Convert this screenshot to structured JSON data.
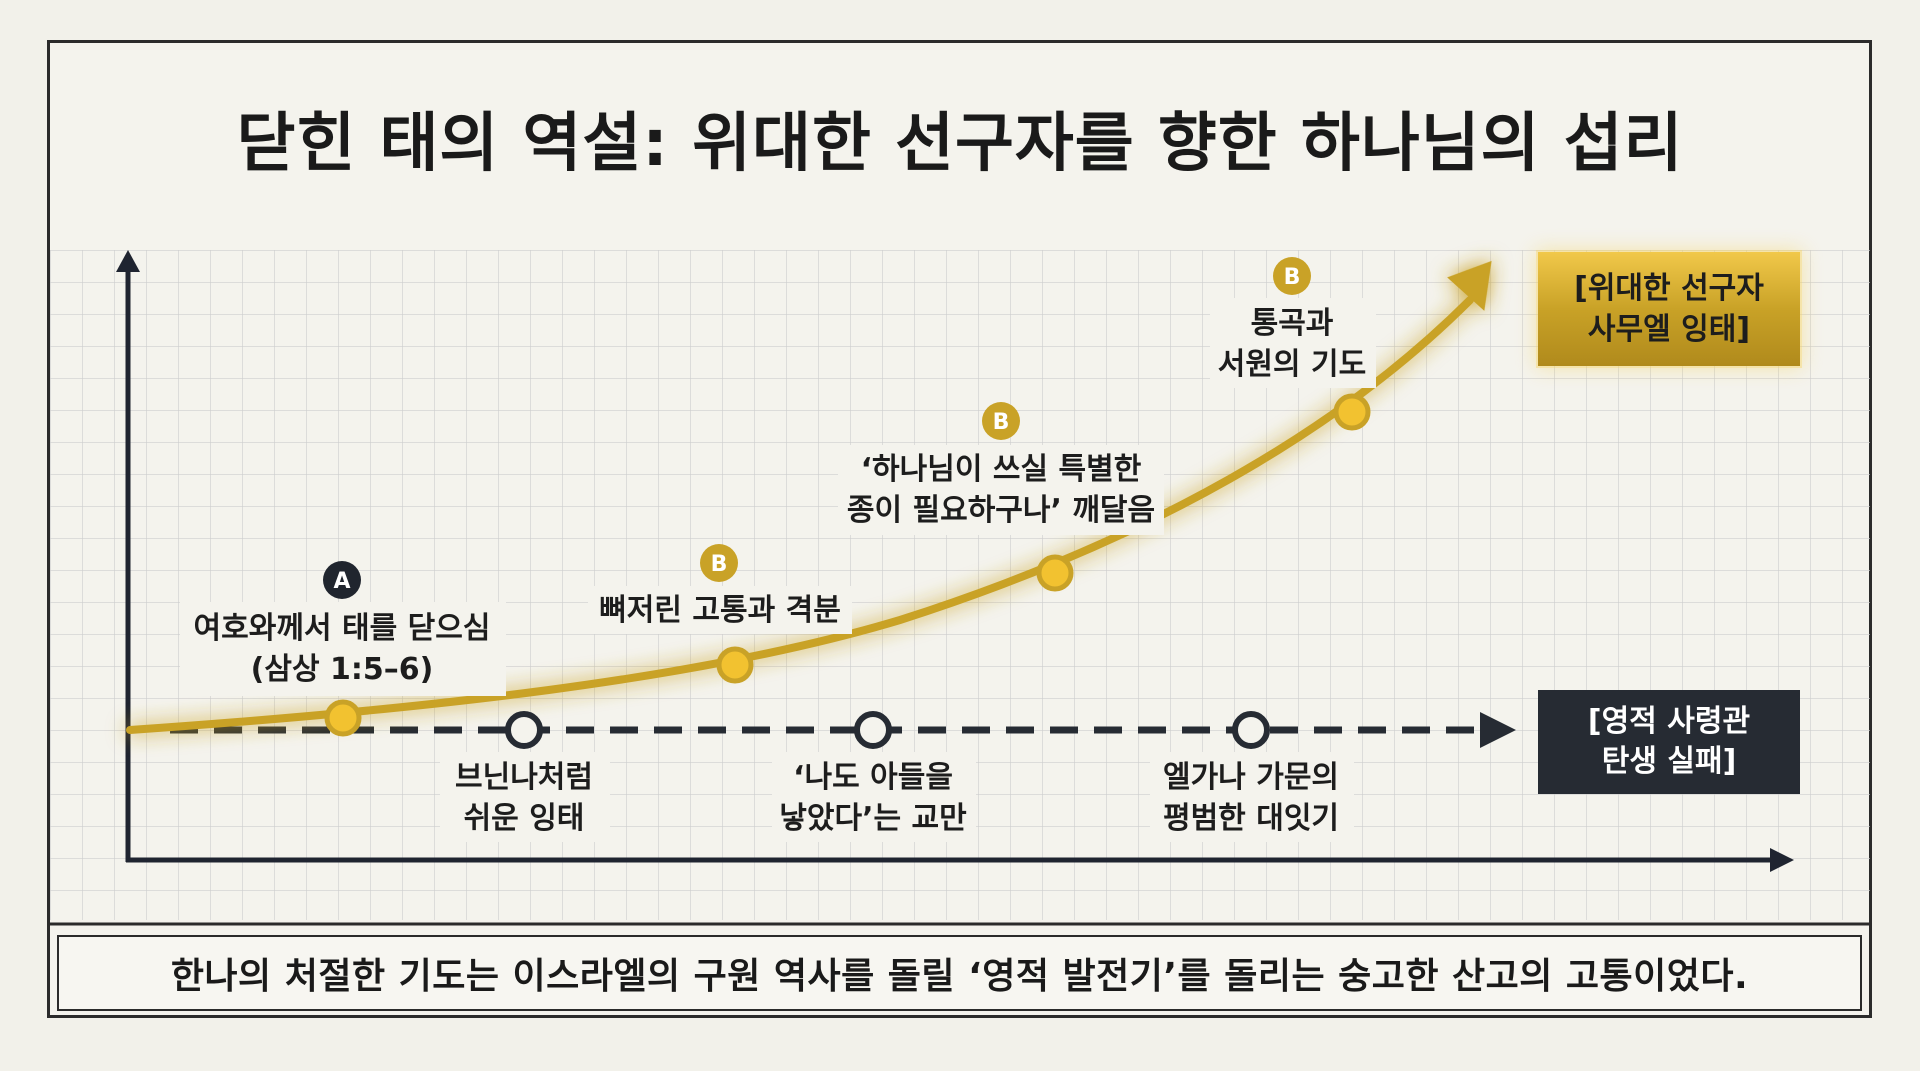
{
  "title": "닫힌 태의 역설: 위대한 선구자를 향한 하나님의 섭리",
  "caption": "한나의 처절한 기도는 이스라엘의 구원 역사를 돌릴 ‘영적 발전기’를 돌리는 숭고한 산고의 고통이었다.",
  "rising_path": {
    "color": "#c9a227",
    "points": [
      {
        "badge": "A",
        "lines": [
          "여호와께서 태를 닫으심",
          "(삼상 1:5–6)"
        ]
      },
      {
        "badge": "B",
        "lines": [
          "뼈저린 고통과 격분"
        ]
      },
      {
        "badge": "B",
        "lines": [
          "‘하나님이 쓰실 특별한",
          "종이 필요하구나’ 깨달음"
        ]
      },
      {
        "badge": "B",
        "lines": [
          "통곡과",
          "서원의 기도"
        ]
      }
    ],
    "outcome": {
      "lines": [
        "[위대한 선구자",
        "사무엘 잉태]"
      ]
    }
  },
  "flat_path": {
    "color": "#262b33",
    "points": [
      {
        "lines": [
          "브닌나처럼",
          "쉬운 잉태"
        ]
      },
      {
        "lines": [
          "‘나도 아들을",
          "낳았다’는 교만"
        ]
      },
      {
        "lines": [
          "엘가나 가문의",
          "평범한 대잇기"
        ]
      }
    ],
    "outcome": {
      "lines": [
        "[영적 사령관",
        "탄생 실패]"
      ]
    }
  },
  "colors": {
    "gold": "#c9a227",
    "gold_light": "#f6cf3a",
    "dark": "#262b33",
    "grid": "#cfcfcf"
  }
}
